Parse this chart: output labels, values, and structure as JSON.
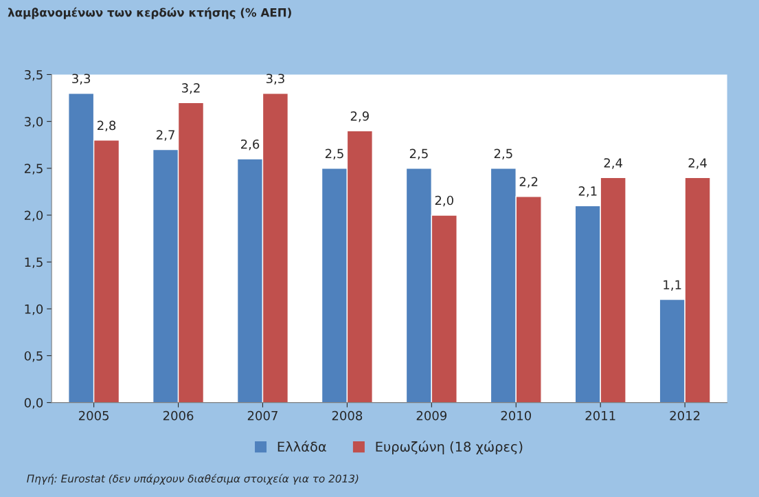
{
  "chart_data": {
    "type": "bar",
    "title": "λαμβανομένων των κερδών κτήσης (% ΑΕΠ)",
    "categories": [
      "2005",
      "2006",
      "2007",
      "2008",
      "2009",
      "2010",
      "2011",
      "2012"
    ],
    "series": [
      {
        "name": "Ελλάδα",
        "color": "#4f81bd",
        "values": [
          3.3,
          2.7,
          2.6,
          2.5,
          2.5,
          2.5,
          2.1,
          1.1
        ],
        "value_labels": [
          "3,3",
          "2,7",
          "2,6",
          "2,5",
          "2,5",
          "2,5",
          "2,1",
          "1,1"
        ]
      },
      {
        "name": "Ευρωζώνη (18 χώρες)",
        "color": "#c0504d",
        "values": [
          2.8,
          3.2,
          3.3,
          2.9,
          2.0,
          2.2,
          2.4,
          2.4
        ],
        "value_labels": [
          "2,8",
          "3,2",
          "3,3",
          "2,9",
          "2,0",
          "2,2",
          "2,4",
          "2,4"
        ]
      }
    ],
    "ylim": [
      0,
      3.5
    ],
    "yticks": [
      {
        "value": 0,
        "label": "0,0"
      },
      {
        "value": 0.5,
        "label": "0,5"
      },
      {
        "value": 1,
        "label": "1,0"
      },
      {
        "value": 1.5,
        "label": "1,5"
      },
      {
        "value": 2,
        "label": "2,0"
      },
      {
        "value": 2.5,
        "label": "2,5"
      },
      {
        "value": 3,
        "label": "3,0"
      },
      {
        "value": 3.5,
        "label": "3,5"
      }
    ],
    "grid": false,
    "legend": "bottom",
    "annotations": [
      "Πηγή: Eurostat (δεν υπάρχουν διαθέσιμα στοιχεία για το 2013)"
    ]
  }
}
